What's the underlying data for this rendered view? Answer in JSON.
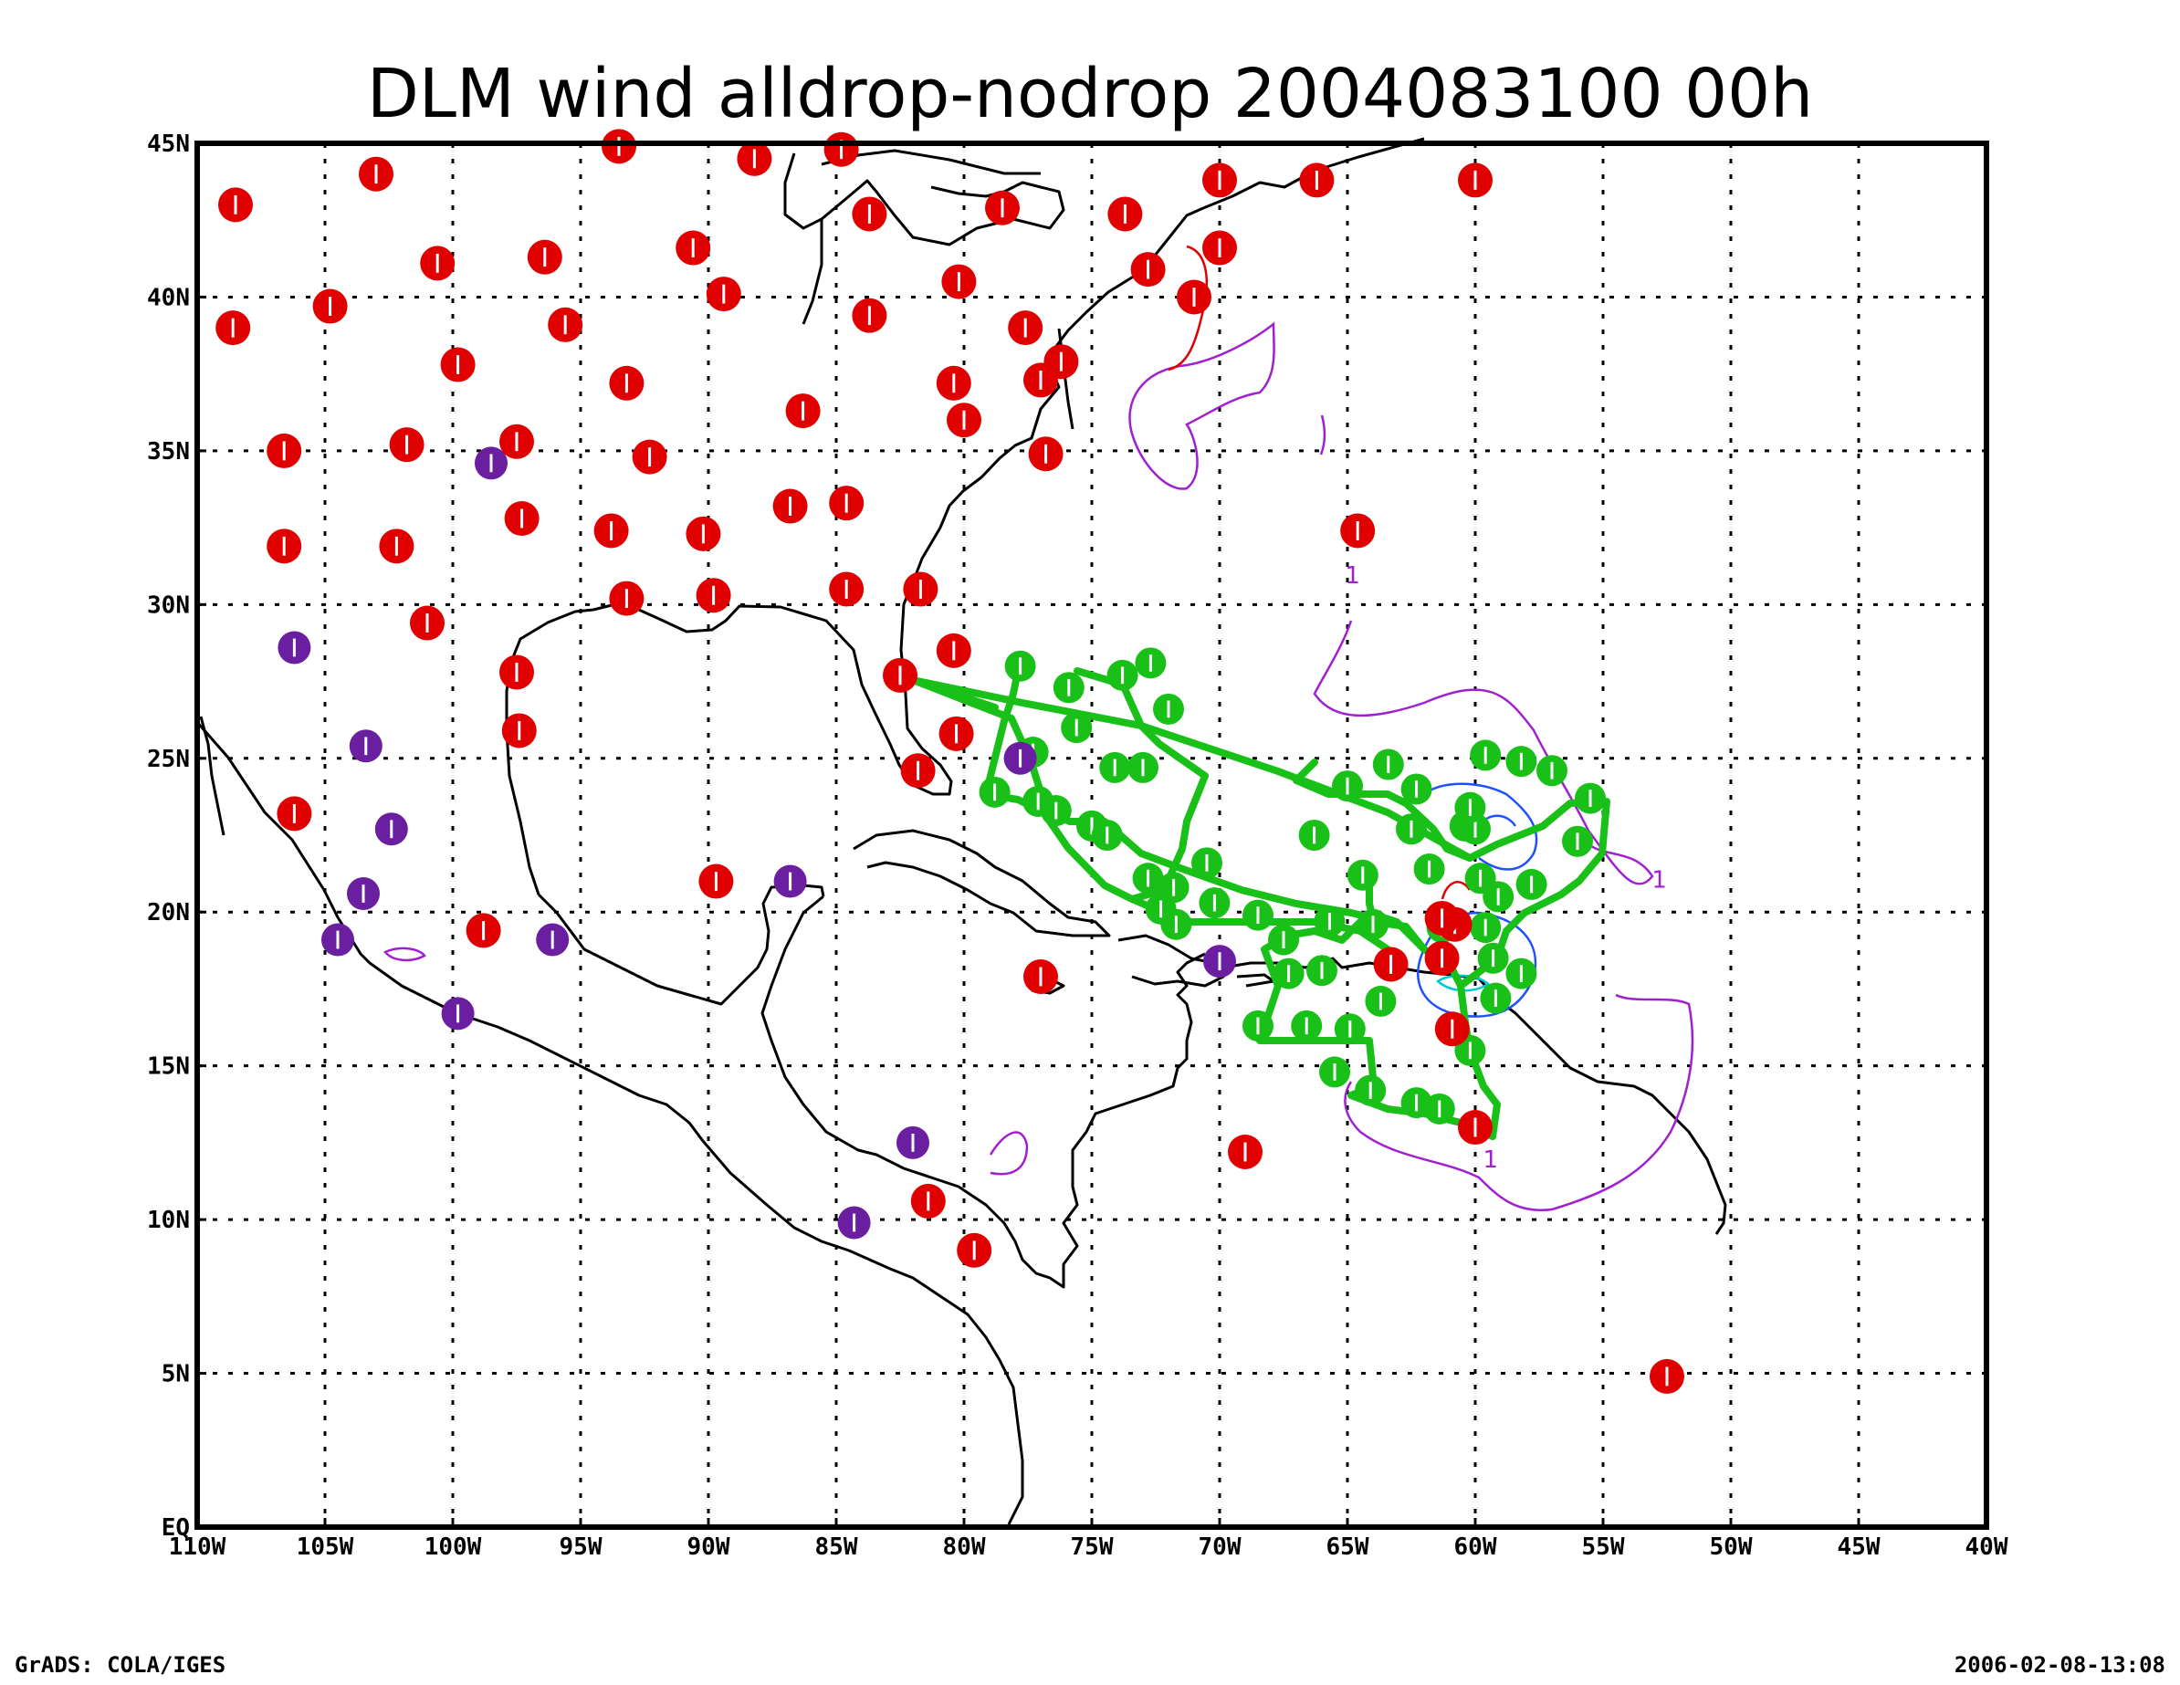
{
  "title": "DLM wind alldrop-nodrop 2004083100 00h",
  "footer_left": "GrADS: COLA/IGES",
  "footer_right": "2006-02-08-13:08",
  "colors": {
    "frame": "#000000",
    "coast": "#000000",
    "grid": "#000000",
    "station_red": "#e00000",
    "station_purple": "#6a1fa0",
    "dropsonde_green": "#18c018",
    "contour_magenta": "#a020d0",
    "contour_blue": "#1e50ff",
    "contour_cyan": "#00c8d2",
    "contour_red": "#e00000"
  },
  "x_ticks": [
    "110W",
    "105W",
    "100W",
    "95W",
    "90W",
    "85W",
    "80W",
    "75W",
    "70W",
    "65W",
    "60W",
    "55W",
    "50W",
    "45W",
    "40W"
  ],
  "y_ticks": [
    "EQ",
    "5N",
    "10N",
    "15N",
    "20N",
    "25N",
    "30N",
    "35N",
    "40N",
    "45N"
  ],
  "contour_labels": [
    {
      "text": "1",
      "lon": -52.8,
      "lat": 20.8,
      "color": "magenta"
    },
    {
      "text": "1",
      "lon": -59.4,
      "lat": 11.7,
      "color": "magenta"
    },
    {
      "text": "1",
      "lon": -64.8,
      "lat": 30.7,
      "color": "magenta"
    }
  ],
  "chart_data": {
    "type": "map",
    "extent": {
      "lon": [
        -110,
        -40
      ],
      "lat": [
        0,
        45
      ]
    },
    "grid": "dotted at 5 degree intervals",
    "stations_red": [
      [
        -108.5,
        43
      ],
      [
        -103,
        44
      ],
      [
        -93.5,
        44.9
      ],
      [
        -88.2,
        44.5
      ],
      [
        -84.8,
        44.8
      ],
      [
        -83.7,
        42.7
      ],
      [
        -78.5,
        42.9
      ],
      [
        -70,
        43.8
      ],
      [
        -66.2,
        43.8
      ],
      [
        -60,
        43.8
      ],
      [
        -108.6,
        39
      ],
      [
        -104.8,
        39.7
      ],
      [
        -100.6,
        41.1
      ],
      [
        -96.4,
        41.3
      ],
      [
        -90.6,
        41.6
      ],
      [
        -89.4,
        40.1
      ],
      [
        -80.2,
        40.5
      ],
      [
        -73.7,
        42.7
      ],
      [
        -72.8,
        40.9
      ],
      [
        -71,
        40
      ],
      [
        -70,
        41.6
      ],
      [
        -99.8,
        37.8
      ],
      [
        -95.6,
        39.1
      ],
      [
        -93.2,
        37.2
      ],
      [
        -86.3,
        36.3
      ],
      [
        -83.7,
        39.4
      ],
      [
        -80.4,
        37.2
      ],
      [
        -80,
        36
      ],
      [
        -77.6,
        39
      ],
      [
        -77,
        37.3
      ],
      [
        -76.2,
        37.9
      ],
      [
        -76.8,
        34.9
      ],
      [
        -106.6,
        35
      ],
      [
        -101.8,
        35.2
      ],
      [
        -97.5,
        35.3
      ],
      [
        -92.3,
        34.8
      ],
      [
        -84.6,
        33.3
      ],
      [
        -86.8,
        33.2
      ],
      [
        -90.2,
        32.3
      ],
      [
        -93.8,
        32.4
      ],
      [
        -97.3,
        32.8
      ],
      [
        -102.2,
        31.9
      ],
      [
        -106.6,
        31.9
      ],
      [
        -101,
        29.4
      ],
      [
        -97.5,
        27.8
      ],
      [
        -97.4,
        25.9
      ],
      [
        -93.2,
        30.2
      ],
      [
        -89.8,
        30.3
      ],
      [
        -84.6,
        30.5
      ],
      [
        -81.7,
        30.5
      ],
      [
        -82.5,
        27.7
      ],
      [
        -80.4,
        28.5
      ],
      [
        -80.3,
        25.8
      ],
      [
        -81.8,
        24.6
      ],
      [
        -106.2,
        23.2
      ],
      [
        -98.8,
        19.4
      ],
      [
        -89.7,
        21
      ],
      [
        -77,
        17.9
      ],
      [
        -69,
        12.2
      ],
      [
        -81.4,
        10.6
      ],
      [
        -79.6,
        9
      ],
      [
        -52.5,
        4.9
      ],
      [
        -64.6,
        32.4
      ],
      [
        -61.3,
        18.5
      ],
      [
        -63.3,
        18.3
      ],
      [
        -60.9,
        16.2
      ],
      [
        -60,
        13
      ],
      [
        -60.8,
        19.6
      ],
      [
        -61.3,
        19.8
      ]
    ],
    "stations_purple": [
      [
        -98.5,
        34.6
      ],
      [
        -106.2,
        28.6
      ],
      [
        -103.4,
        25.4
      ],
      [
        -102.4,
        22.7
      ],
      [
        -103.5,
        20.6
      ],
      [
        -104.5,
        19.1
      ],
      [
        -96.1,
        19.1
      ],
      [
        -99.8,
        16.7
      ],
      [
        -86.8,
        21
      ],
      [
        -82,
        12.5
      ],
      [
        -84.3,
        9.9
      ],
      [
        -77.8,
        25
      ],
      [
        -70,
        18.4
      ]
    ],
    "dropsonde_green": [
      [
        -77.8,
        28
      ],
      [
        -72.7,
        28.1
      ],
      [
        -75.9,
        27.3
      ],
      [
        -73.8,
        27.7
      ],
      [
        -72,
        26.6
      ],
      [
        -75.6,
        26
      ],
      [
        -77.3,
        25.2
      ],
      [
        -74.1,
        24.7
      ],
      [
        -73,
        24.7
      ],
      [
        -78.8,
        23.9
      ],
      [
        -77.1,
        23.6
      ],
      [
        -76.4,
        23.3
      ],
      [
        -75,
        22.8
      ],
      [
        -74.4,
        22.5
      ],
      [
        -70.5,
        21.6
      ],
      [
        -72.8,
        21.1
      ],
      [
        -71.8,
        20.8
      ],
      [
        -72.3,
        20.1
      ],
      [
        -71.7,
        19.6
      ],
      [
        -70.2,
        20.3
      ],
      [
        -68.5,
        19.9
      ],
      [
        -67.5,
        19.1
      ],
      [
        -67.3,
        18
      ],
      [
        -68.5,
        16.3
      ],
      [
        -66.6,
        16.3
      ],
      [
        -64.9,
        16.2
      ],
      [
        -65.5,
        14.8
      ],
      [
        -64.1,
        14.2
      ],
      [
        -62.3,
        13.8
      ],
      [
        -61.4,
        13.6
      ],
      [
        -63.7,
        17.1
      ],
      [
        -64,
        19.6
      ],
      [
        -64.4,
        21.2
      ],
      [
        -62.5,
        22.7
      ],
      [
        -60.4,
        22.8
      ],
      [
        -60,
        22.7
      ],
      [
        -61.8,
        21.4
      ],
      [
        -59.8,
        21.1
      ],
      [
        -61.3,
        19.5
      ],
      [
        -59.6,
        19.5
      ],
      [
        -59.1,
        20.5
      ],
      [
        -57.8,
        20.9
      ],
      [
        -56,
        22.3
      ],
      [
        -55.5,
        23.7
      ],
      [
        -57,
        24.6
      ],
      [
        -58.2,
        24.9
      ],
      [
        -59.6,
        25.1
      ],
      [
        -60.2,
        23.4
      ],
      [
        -62.3,
        24
      ],
      [
        -63.4,
        24.8
      ],
      [
        -65,
        24.1
      ],
      [
        -66.3,
        22.5
      ],
      [
        -65.7,
        19.7
      ],
      [
        -66,
        18.1
      ],
      [
        -60.2,
        15.5
      ],
      [
        -59.2,
        17.2
      ],
      [
        -59.3,
        18.5
      ],
      [
        -58.2,
        18
      ]
    ]
  }
}
